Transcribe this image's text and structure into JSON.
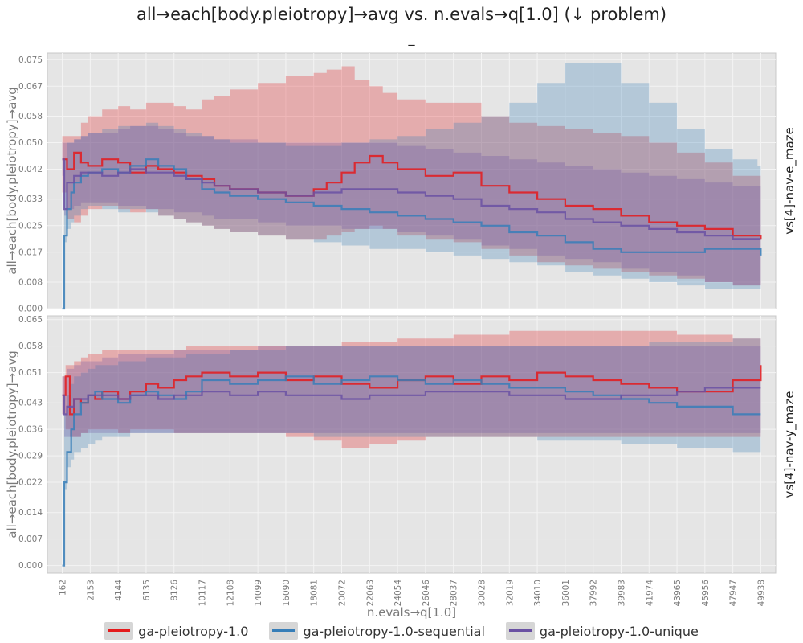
{
  "title": "all→each[body.pleiotropy]→avg vs. n.evals→q[1.0] (↓ problem)",
  "subtitle": "_",
  "chart_data": [
    {
      "type": "line",
      "facet_label": "vs[4]-nav-e_maze",
      "ylabel": "all→each[body.pleiotropy]→avg",
      "ylim": [
        0,
        0.077
      ],
      "yticks": [
        "0.000",
        "0.008",
        "0.017",
        "0.025",
        "0.033",
        "0.042",
        "0.050",
        "0.058",
        "0.067",
        "0.075"
      ],
      "series": [
        {
          "name": "ga-pleiotropy-1.0",
          "color": "#e41a1c",
          "x": [
            162,
            500,
            1000,
            1500,
            2000,
            3000,
            4144,
            5000,
            6135,
            7000,
            8126,
            9000,
            10117,
            11000,
            12108,
            14099,
            16090,
            18081,
            19000,
            20072,
            21000,
            22063,
            23000,
            24054,
            26046,
            28037,
            30028,
            32019,
            34010,
            36001,
            37992,
            39983,
            41974,
            43965,
            45956,
            47947,
            49938
          ],
          "values": [
            0.045,
            0.042,
            0.047,
            0.044,
            0.043,
            0.045,
            0.044,
            0.041,
            0.043,
            0.042,
            0.041,
            0.04,
            0.039,
            0.037,
            0.036,
            0.035,
            0.034,
            0.036,
            0.038,
            0.041,
            0.044,
            0.046,
            0.044,
            0.042,
            0.04,
            0.041,
            0.037,
            0.035,
            0.033,
            0.031,
            0.03,
            0.028,
            0.026,
            0.025,
            0.024,
            0.022,
            0.021
          ],
          "lower": [
            0.035,
            0.027,
            0.026,
            0.028,
            0.03,
            0.031,
            0.03,
            0.029,
            0.03,
            0.028,
            0.027,
            0.026,
            0.025,
            0.024,
            0.023,
            0.022,
            0.021,
            0.021,
            0.022,
            0.023,
            0.024,
            0.025,
            0.024,
            0.022,
            0.021,
            0.02,
            0.018,
            0.016,
            0.014,
            0.013,
            0.012,
            0.011,
            0.01,
            0.009,
            0.008,
            0.007,
            0.006
          ],
          "upper": [
            0.052,
            0.052,
            0.052,
            0.056,
            0.058,
            0.06,
            0.061,
            0.06,
            0.062,
            0.062,
            0.061,
            0.06,
            0.063,
            0.064,
            0.066,
            0.068,
            0.07,
            0.071,
            0.072,
            0.073,
            0.069,
            0.067,
            0.065,
            0.063,
            0.062,
            0.062,
            0.058,
            0.056,
            0.055,
            0.054,
            0.053,
            0.052,
            0.05,
            0.047,
            0.044,
            0.04,
            0.038
          ]
        },
        {
          "name": "ga-pleiotropy-1.0-sequential",
          "color": "#377eb8",
          "x": [
            162,
            300,
            500,
            800,
            1000,
            1500,
            2000,
            3000,
            4144,
            5000,
            6135,
            7000,
            8126,
            9000,
            10117,
            11000,
            12108,
            14099,
            16090,
            18081,
            20072,
            22063,
            24054,
            26046,
            28037,
            30028,
            32019,
            34010,
            36001,
            37992,
            39983,
            41974,
            43965,
            45956,
            47947,
            49700,
            49938
          ],
          "values": [
            0.0,
            0.022,
            0.03,
            0.035,
            0.038,
            0.04,
            0.041,
            0.042,
            0.041,
            0.043,
            0.045,
            0.043,
            0.042,
            0.039,
            0.036,
            0.035,
            0.034,
            0.033,
            0.032,
            0.031,
            0.03,
            0.029,
            0.028,
            0.027,
            0.026,
            0.025,
            0.023,
            0.022,
            0.02,
            0.018,
            0.017,
            0.017,
            0.017,
            0.018,
            0.018,
            0.018,
            0.016
          ],
          "lower": [
            0.0,
            0.02,
            0.024,
            0.026,
            0.028,
            0.03,
            0.031,
            0.03,
            0.029,
            0.03,
            0.029,
            0.028,
            0.027,
            0.026,
            0.025,
            0.024,
            0.023,
            0.022,
            0.021,
            0.02,
            0.019,
            0.018,
            0.018,
            0.017,
            0.016,
            0.015,
            0.014,
            0.013,
            0.011,
            0.01,
            0.009,
            0.008,
            0.007,
            0.006,
            0.006,
            0.006,
            0.006
          ],
          "upper": [
            0.0,
            0.045,
            0.05,
            0.05,
            0.051,
            0.052,
            0.053,
            0.054,
            0.055,
            0.055,
            0.056,
            0.055,
            0.054,
            0.053,
            0.052,
            0.051,
            0.05,
            0.05,
            0.049,
            0.049,
            0.05,
            0.051,
            0.052,
            0.054,
            0.056,
            0.058,
            0.062,
            0.068,
            0.074,
            0.074,
            0.068,
            0.062,
            0.054,
            0.048,
            0.045,
            0.043,
            0.043
          ]
        },
        {
          "name": "ga-pleiotropy-1.0-unique",
          "color": "#6a51a3",
          "x": [
            162,
            300,
            500,
            1000,
            1500,
            2000,
            3000,
            4144,
            5000,
            6135,
            7000,
            8126,
            9000,
            10117,
            11000,
            12108,
            14099,
            16090,
            18081,
            20072,
            22063,
            24054,
            26046,
            28037,
            30028,
            32019,
            34010,
            36001,
            37992,
            39983,
            41974,
            43965,
            45956,
            47947,
            49938
          ],
          "values": [
            0.045,
            0.03,
            0.038,
            0.04,
            0.041,
            0.041,
            0.04,
            0.041,
            0.042,
            0.041,
            0.041,
            0.04,
            0.039,
            0.038,
            0.037,
            0.036,
            0.035,
            0.034,
            0.035,
            0.036,
            0.036,
            0.035,
            0.034,
            0.033,
            0.031,
            0.03,
            0.029,
            0.027,
            0.026,
            0.025,
            0.024,
            0.023,
            0.022,
            0.021,
            0.021
          ],
          "lower": [
            0.04,
            0.028,
            0.03,
            0.031,
            0.032,
            0.032,
            0.032,
            0.031,
            0.031,
            0.03,
            0.03,
            0.029,
            0.029,
            0.028,
            0.027,
            0.027,
            0.026,
            0.025,
            0.025,
            0.024,
            0.024,
            0.023,
            0.022,
            0.021,
            0.019,
            0.018,
            0.016,
            0.015,
            0.014,
            0.012,
            0.011,
            0.01,
            0.008,
            0.007,
            0.006
          ],
          "upper": [
            0.05,
            0.05,
            0.05,
            0.051,
            0.052,
            0.053,
            0.053,
            0.054,
            0.055,
            0.055,
            0.054,
            0.053,
            0.052,
            0.052,
            0.051,
            0.051,
            0.05,
            0.05,
            0.05,
            0.05,
            0.05,
            0.049,
            0.048,
            0.047,
            0.046,
            0.045,
            0.044,
            0.043,
            0.042,
            0.041,
            0.04,
            0.039,
            0.038,
            0.037,
            0.036
          ]
        }
      ]
    },
    {
      "type": "line",
      "facet_label": "vs[4]-nav-y_maze",
      "ylabel": "all→each[body.pleiotropy]→avg",
      "xlabel": "n.evals→q[1.0]",
      "ylim": [
        -0.002,
        0.066
      ],
      "yticks": [
        "0.000",
        "0.007",
        "0.014",
        "0.022",
        "0.029",
        "0.036",
        "0.043",
        "0.051",
        "0.058",
        "0.065"
      ],
      "series": [
        {
          "name": "ga-pleiotropy-1.0",
          "color": "#e41a1c",
          "x": [
            162,
            400,
            700,
            1000,
            1500,
            2000,
            2500,
            3000,
            4144,
            5000,
            6135,
            7000,
            8126,
            9000,
            10117,
            12108,
            14099,
            16090,
            18081,
            20072,
            22063,
            24054,
            26046,
            28037,
            30028,
            32019,
            34010,
            36001,
            37992,
            39983,
            41974,
            43965,
            45956,
            47947,
            49938
          ],
          "values": [
            0.045,
            0.05,
            0.04,
            0.044,
            0.043,
            0.045,
            0.044,
            0.046,
            0.044,
            0.046,
            0.048,
            0.047,
            0.049,
            0.05,
            0.051,
            0.05,
            0.051,
            0.049,
            0.05,
            0.048,
            0.047,
            0.049,
            0.05,
            0.048,
            0.05,
            0.049,
            0.051,
            0.05,
            0.049,
            0.048,
            0.047,
            0.046,
            0.046,
            0.049,
            0.053
          ],
          "lower": [
            0.04,
            0.036,
            0.034,
            0.034,
            0.035,
            0.036,
            0.036,
            0.036,
            0.035,
            0.036,
            0.036,
            0.036,
            0.035,
            0.035,
            0.035,
            0.035,
            0.035,
            0.034,
            0.033,
            0.031,
            0.032,
            0.033,
            0.034,
            0.034,
            0.034,
            0.034,
            0.034,
            0.034,
            0.034,
            0.034,
            0.034,
            0.034,
            0.034,
            0.034,
            0.034
          ],
          "upper": [
            0.05,
            0.053,
            0.053,
            0.054,
            0.055,
            0.056,
            0.056,
            0.057,
            0.057,
            0.057,
            0.057,
            0.057,
            0.057,
            0.058,
            0.058,
            0.058,
            0.058,
            0.058,
            0.058,
            0.059,
            0.059,
            0.06,
            0.06,
            0.061,
            0.061,
            0.062,
            0.062,
            0.062,
            0.062,
            0.062,
            0.062,
            0.061,
            0.061,
            0.06,
            0.06
          ]
        },
        {
          "name": "ga-pleiotropy-1.0-sequential",
          "color": "#377eb8",
          "x": [
            162,
            300,
            500,
            800,
            1000,
            1500,
            2000,
            2500,
            3000,
            4144,
            5000,
            6135,
            7000,
            8126,
            9000,
            10117,
            12108,
            14099,
            16090,
            18081,
            20072,
            22063,
            24054,
            26046,
            28037,
            30028,
            32019,
            34010,
            36001,
            37992,
            39983,
            41974,
            43965,
            45956,
            47947,
            49938
          ],
          "values": [
            0.0,
            0.022,
            0.03,
            0.036,
            0.04,
            0.043,
            0.045,
            0.046,
            0.044,
            0.043,
            0.045,
            0.046,
            0.045,
            0.044,
            0.046,
            0.049,
            0.048,
            0.049,
            0.05,
            0.048,
            0.049,
            0.05,
            0.049,
            0.048,
            0.049,
            0.048,
            0.047,
            0.047,
            0.046,
            0.045,
            0.044,
            0.043,
            0.042,
            0.042,
            0.04,
            0.04
          ],
          "lower": [
            0.0,
            0.02,
            0.026,
            0.028,
            0.03,
            0.031,
            0.032,
            0.033,
            0.034,
            0.034,
            0.035,
            0.035,
            0.035,
            0.035,
            0.035,
            0.035,
            0.035,
            0.035,
            0.035,
            0.034,
            0.034,
            0.034,
            0.034,
            0.034,
            0.034,
            0.034,
            0.034,
            0.033,
            0.033,
            0.033,
            0.032,
            0.032,
            0.031,
            0.031,
            0.03,
            0.03
          ],
          "upper": [
            0.0,
            0.04,
            0.045,
            0.048,
            0.05,
            0.051,
            0.052,
            0.053,
            0.053,
            0.054,
            0.054,
            0.055,
            0.055,
            0.055,
            0.056,
            0.056,
            0.057,
            0.057,
            0.058,
            0.058,
            0.058,
            0.058,
            0.058,
            0.058,
            0.058,
            0.058,
            0.058,
            0.058,
            0.058,
            0.058,
            0.058,
            0.059,
            0.059,
            0.059,
            0.06,
            0.06
          ]
        },
        {
          "name": "ga-pleiotropy-1.0-unique",
          "color": "#6a51a3",
          "x": [
            162,
            300,
            500,
            1000,
            1500,
            2000,
            3000,
            4144,
            5000,
            6135,
            7000,
            8126,
            9000,
            10117,
            12108,
            14099,
            16090,
            18081,
            20072,
            22063,
            24054,
            26046,
            28037,
            30028,
            32019,
            34010,
            36001,
            37992,
            39983,
            41974,
            43965,
            45956,
            47947,
            49938
          ],
          "values": [
            0.045,
            0.04,
            0.042,
            0.044,
            0.044,
            0.045,
            0.045,
            0.044,
            0.045,
            0.045,
            0.044,
            0.045,
            0.045,
            0.046,
            0.045,
            0.046,
            0.045,
            0.045,
            0.044,
            0.045,
            0.045,
            0.046,
            0.046,
            0.046,
            0.045,
            0.045,
            0.044,
            0.044,
            0.045,
            0.045,
            0.046,
            0.047,
            0.047,
            0.047
          ],
          "lower": [
            0.04,
            0.034,
            0.034,
            0.034,
            0.035,
            0.035,
            0.035,
            0.035,
            0.035,
            0.035,
            0.035,
            0.035,
            0.035,
            0.035,
            0.035,
            0.035,
            0.035,
            0.035,
            0.035,
            0.035,
            0.035,
            0.035,
            0.035,
            0.035,
            0.035,
            0.035,
            0.035,
            0.035,
            0.035,
            0.035,
            0.035,
            0.035,
            0.035,
            0.035
          ],
          "upper": [
            0.05,
            0.05,
            0.052,
            0.053,
            0.054,
            0.054,
            0.055,
            0.056,
            0.056,
            0.056,
            0.056,
            0.057,
            0.057,
            0.057,
            0.057,
            0.058,
            0.058,
            0.058,
            0.058,
            0.058,
            0.058,
            0.058,
            0.058,
            0.058,
            0.058,
            0.058,
            0.058,
            0.058,
            0.058,
            0.058,
            0.058,
            0.058,
            0.058,
            0.058
          ]
        }
      ]
    }
  ],
  "xticks": [
    "162",
    "2153",
    "4144",
    "6135",
    "8126",
    "10117",
    "12108",
    "14099",
    "16090",
    "18081",
    "20072",
    "22063",
    "24054",
    "26046",
    "28037",
    "30028",
    "32019",
    "34010",
    "36001",
    "37992",
    "39983",
    "41974",
    "43965",
    "45956",
    "47947",
    "49938"
  ],
  "xrange": [
    -900,
    51000
  ],
  "legend": [
    {
      "label": "ga-pleiotropy-1.0",
      "color": "#e41a1c"
    },
    {
      "label": "ga-pleiotropy-1.0-sequential",
      "color": "#377eb8"
    },
    {
      "label": "ga-pleiotropy-1.0-unique",
      "color": "#6a51a3"
    }
  ],
  "colors": {
    "panel_bg": "#e5e5e5",
    "grid": "#f4f4f4",
    "tick_text": "#7a7a7a"
  }
}
